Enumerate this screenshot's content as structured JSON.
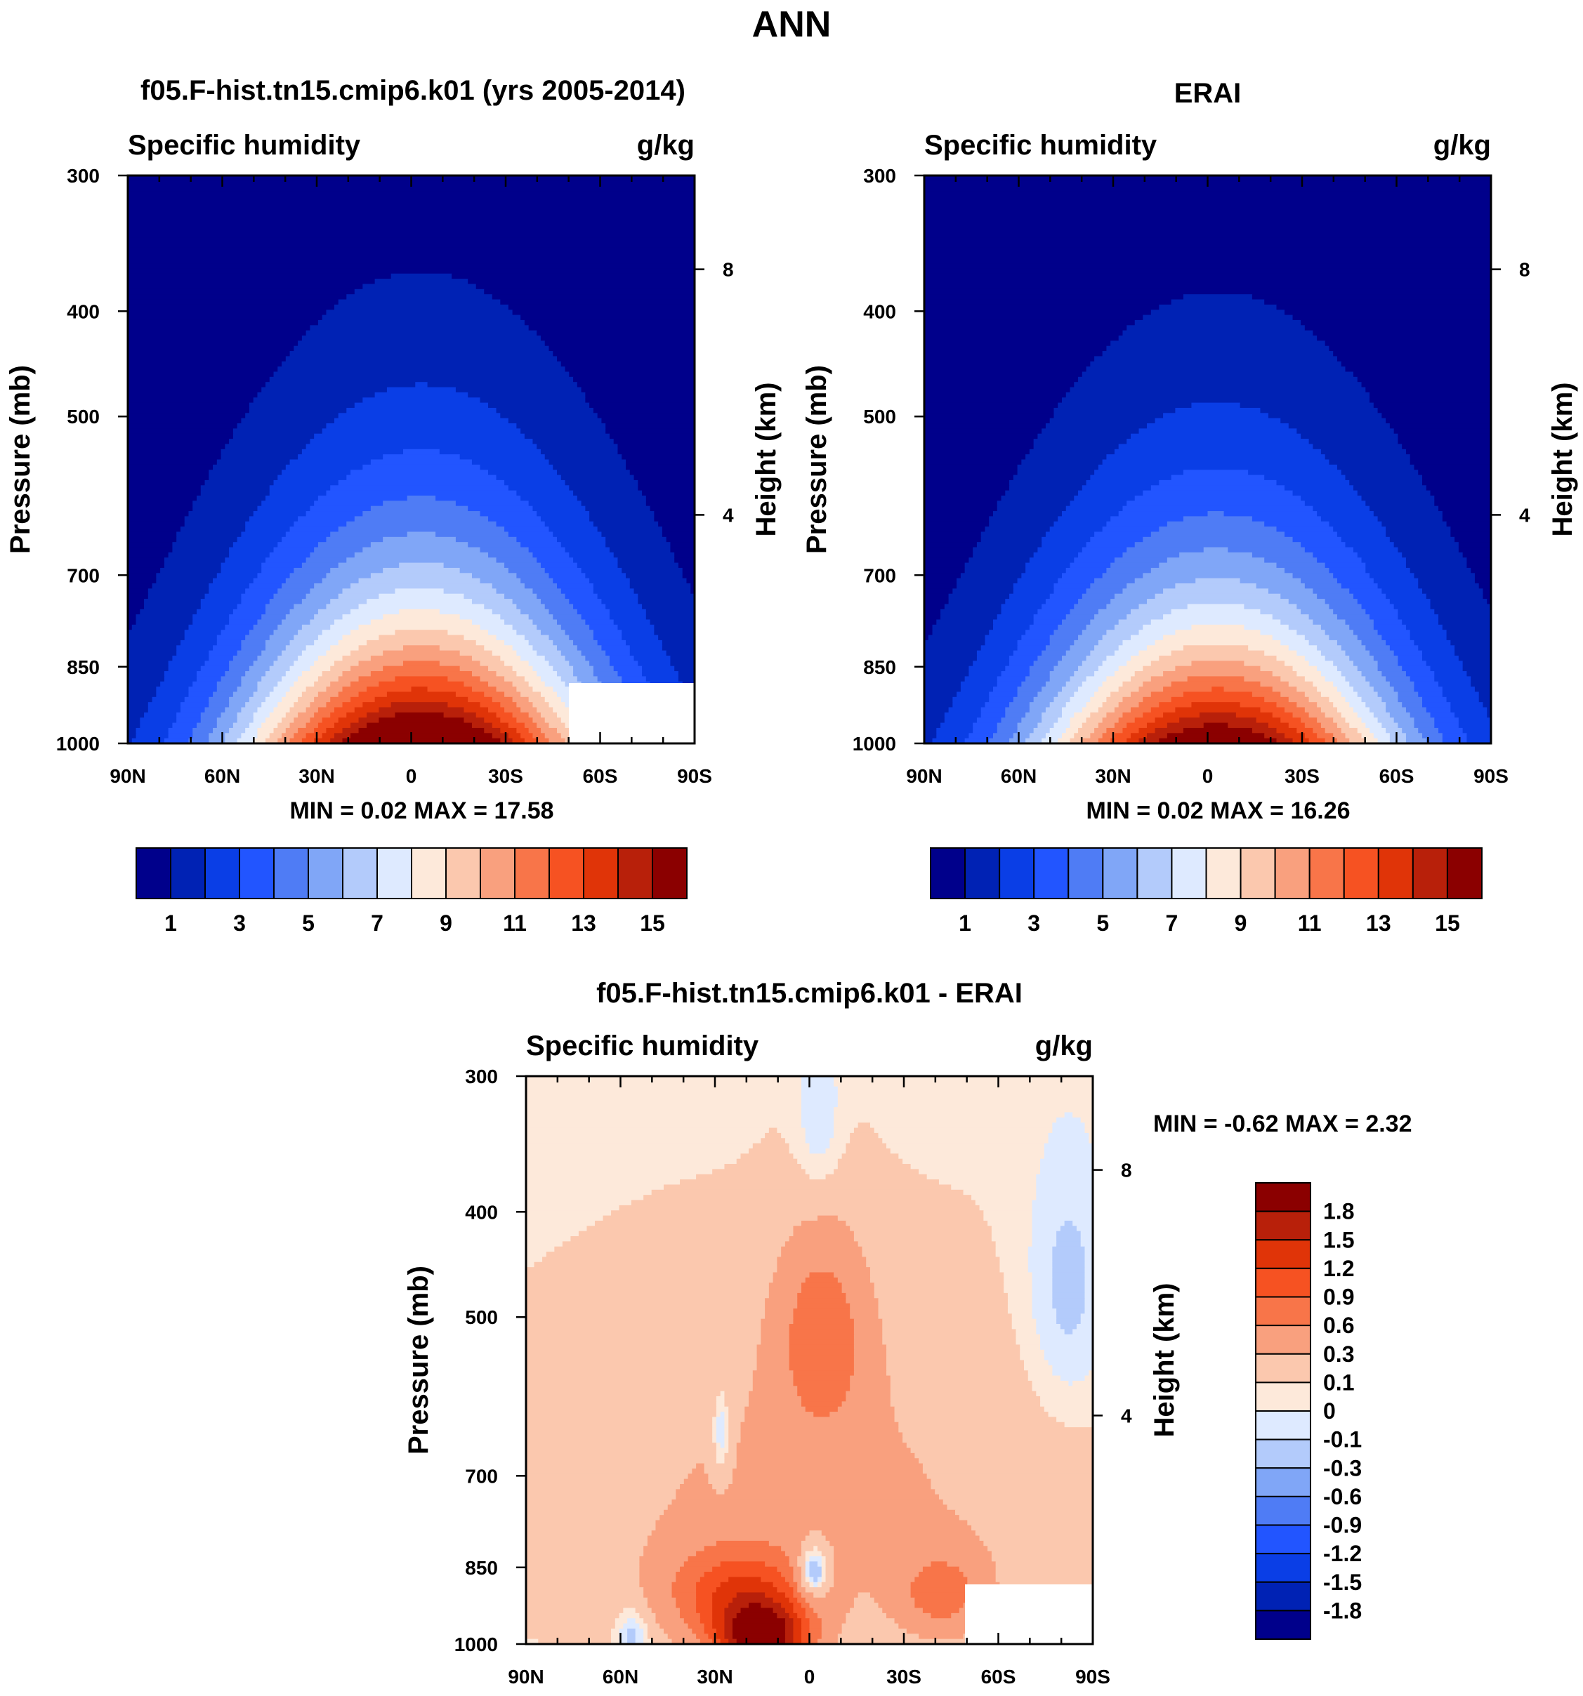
{
  "figure": {
    "title": "ANN"
  },
  "panels": [
    {
      "id": "model",
      "title": "f05.F-hist.tn15.cmip6.k01 (yrs 2005-2014)",
      "left_label": "Specific humidity",
      "right_label": "g/kg",
      "ylabel": "Pressure (mb)",
      "y2label": "Height (km)",
      "xticks": [
        "90N",
        "60N",
        "30N",
        "0",
        "30S",
        "60S",
        "90S"
      ],
      "yticks": [
        "300",
        "400",
        "500",
        "700",
        "850",
        "1000"
      ],
      "y2ticks": [
        "8",
        "4"
      ],
      "minmax": "MIN =   0.02  MAX =  17.58"
    },
    {
      "id": "obs",
      "title": "ERAI",
      "left_label": "Specific humidity",
      "right_label": "g/kg",
      "ylabel": "Pressure (mb)",
      "y2label": "Height (km)",
      "xticks": [
        "90N",
        "60N",
        "30N",
        "0",
        "30S",
        "60S",
        "90S"
      ],
      "yticks": [
        "300",
        "400",
        "500",
        "700",
        "850",
        "1000"
      ],
      "y2ticks": [
        "8",
        "4"
      ],
      "minmax": "MIN =   0.02  MAX =  16.26"
    },
    {
      "id": "diff",
      "title": "f05.F-hist.tn15.cmip6.k01 - ERAI",
      "left_label": "Specific humidity",
      "right_label": "g/kg",
      "ylabel": "Pressure (mb)",
      "y2label": "Height (km)",
      "xticks": [
        "90N",
        "60N",
        "30N",
        "0",
        "30S",
        "60S",
        "90S"
      ],
      "yticks": [
        "300",
        "400",
        "500",
        "700",
        "850",
        "1000"
      ],
      "y2ticks": [
        "8",
        "4"
      ],
      "minmax": "MIN =  -0.62  MAX =   2.32"
    }
  ],
  "colorbar_main": {
    "labels": [
      "1",
      "3",
      "5",
      "7",
      "9",
      "11",
      "13",
      "15"
    ],
    "colors": [
      "#00008b",
      "#0022b4",
      "#0a3ee6",
      "#2255ff",
      "#4f7cf5",
      "#80a6f7",
      "#b3cbfb",
      "#deeaff",
      "#fde9da",
      "#fbc8ae",
      "#f9a07e",
      "#f87549",
      "#f65222",
      "#e03408",
      "#b8200a",
      "#8b0000"
    ]
  },
  "colorbar_diff": {
    "labels": [
      "1.8",
      "1.5",
      "1.2",
      "0.9",
      "0.6",
      "0.3",
      "0.1",
      "0",
      "-0.1",
      "-0.3",
      "-0.6",
      "-0.9",
      "-1.2",
      "-1.5",
      "-1.8"
    ],
    "colors": [
      "#8b0000",
      "#b8200a",
      "#e03408",
      "#f65222",
      "#f87549",
      "#f9a07e",
      "#fbc8ae",
      "#fde9da",
      "#deeaff",
      "#b3cbfb",
      "#80a6f7",
      "#4f7cf5",
      "#2255ff",
      "#0a3ee6",
      "#0022b4",
      "#00008b"
    ]
  },
  "chart_data": [
    {
      "type": "heatmap",
      "title": "f05.F-hist.tn15.cmip6.k01 (yrs 2005-2014)",
      "variable": "Specific humidity",
      "units": "g/kg",
      "xlabel": "",
      "ylabel": "Pressure (mb)",
      "y2label": "Height (km)",
      "x_ticks": [
        "90N",
        "60N",
        "30N",
        "0",
        "30S",
        "60S",
        "90S"
      ],
      "x_range": [
        -90,
        90
      ],
      "y_ticks": [
        300,
        400,
        500,
        700,
        850,
        1000
      ],
      "y_range": [
        300,
        1000
      ],
      "y_scale": "log",
      "contour_levels": [
        1,
        2,
        3,
        4,
        5,
        6,
        7,
        8,
        9,
        10,
        11,
        12,
        13,
        14,
        15
      ],
      "peak": {
        "lat": 3,
        "value": 17.58
      },
      "min": 0.02,
      "max": 17.58
    },
    {
      "type": "heatmap",
      "title": "ERAI",
      "variable": "Specific humidity",
      "units": "g/kg",
      "xlabel": "",
      "ylabel": "Pressure (mb)",
      "y2label": "Height (km)",
      "x_ticks": [
        "90N",
        "60N",
        "30N",
        "0",
        "30S",
        "60S",
        "90S"
      ],
      "x_range": [
        -90,
        90
      ],
      "y_ticks": [
        300,
        400,
        500,
        700,
        850,
        1000
      ],
      "y_range": [
        300,
        1000
      ],
      "y_scale": "log",
      "contour_levels": [
        1,
        2,
        3,
        4,
        5,
        6,
        7,
        8,
        9,
        10,
        11,
        12,
        13,
        14,
        15
      ],
      "peak": {
        "lat": 3,
        "value": 16.26
      },
      "min": 0.02,
      "max": 16.26
    },
    {
      "type": "heatmap",
      "title": "f05.F-hist.tn15.cmip6.k01 - ERAI",
      "variable": "Specific humidity",
      "units": "g/kg",
      "xlabel": "",
      "ylabel": "Pressure (mb)",
      "y2label": "Height (km)",
      "x_ticks": [
        "90N",
        "60N",
        "30N",
        "0",
        "30S",
        "60S",
        "90S"
      ],
      "x_range": [
        -90,
        90
      ],
      "y_ticks": [
        300,
        400,
        500,
        700,
        850,
        1000
      ],
      "y_range": [
        300,
        1000
      ],
      "y_scale": "log",
      "contour_levels": [
        -1.8,
        -1.5,
        -1.2,
        -0.9,
        -0.6,
        -0.3,
        -0.1,
        0,
        0.1,
        0.3,
        0.6,
        0.9,
        1.2,
        1.5,
        1.8
      ],
      "min": -0.62,
      "max": 2.32
    }
  ]
}
